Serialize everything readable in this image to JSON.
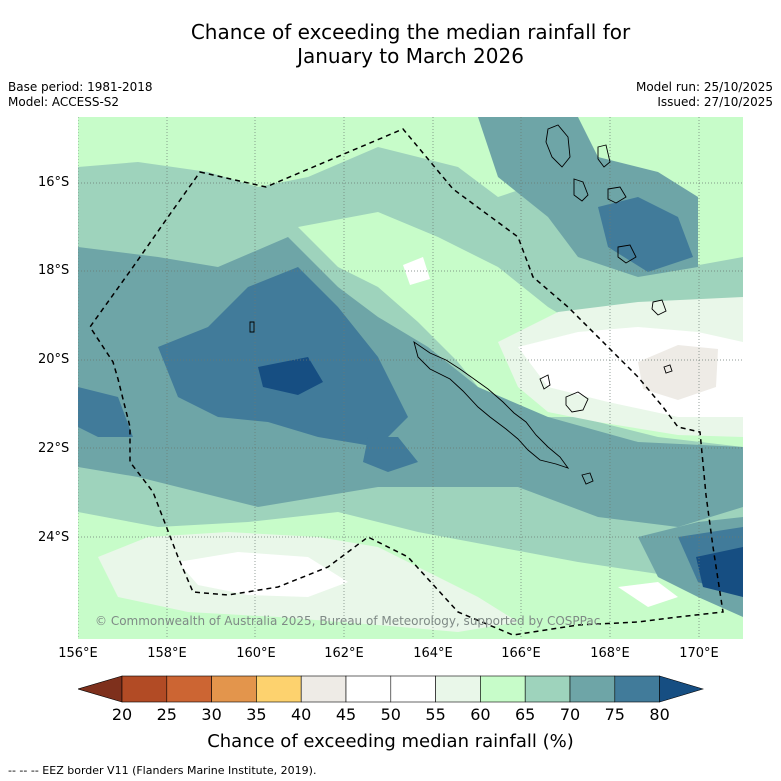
{
  "title": {
    "line1": "Chance of exceeding the median rainfall for",
    "line2": "January to March 2026"
  },
  "meta": {
    "base_period": "Base period: 1981-2018",
    "model": "Model: ACCESS-S2",
    "model_run": "Model run: 25/10/2025",
    "issued": "Issued: 27/10/2025"
  },
  "map": {
    "latitude_labels": [
      "16°S",
      "18°S",
      "20°S",
      "22°S",
      "24°S"
    ],
    "longitude_labels": [
      "156°E",
      "158°E",
      "160°E",
      "162°E",
      "164°E",
      "166°E",
      "168°E",
      "170°E"
    ],
    "copyright": "© Commonwealth of Australia 2025, Bureau of Meteorology, supported by COSPPac",
    "colors": {
      "c35_40": "#fdd26e",
      "c40_45": "#eeebe6",
      "c45_55": "#ffffff",
      "c55_60": "#e9f7e9",
      "c60_65": "#c7fcc9",
      "c65_70": "#9ed3bc",
      "c70_75": "#6ea5a7",
      "c75_80": "#417b9a",
      "c80_plus": "#164e82"
    }
  },
  "colorbar": {
    "label": "Chance of exceeding median rainfall (%)",
    "ticks": [
      "20",
      "25",
      "30",
      "35",
      "40",
      "45",
      "50",
      "55",
      "60",
      "65",
      "70",
      "75",
      "80"
    ],
    "segment_colors": [
      "#7e301c",
      "#b24b25",
      "#cc6533",
      "#e3954c",
      "#fdd26e",
      "#eeebe6",
      "#ffffff",
      "#ffffff",
      "#e9f7e9",
      "#c7fcc9",
      "#9ed3bc",
      "#6ea5a7",
      "#417b9a",
      "#164e82"
    ]
  },
  "legend": {
    "text": "--  --  -- EEZ border V11 (Flanders Marine Institute, 2019)."
  }
}
